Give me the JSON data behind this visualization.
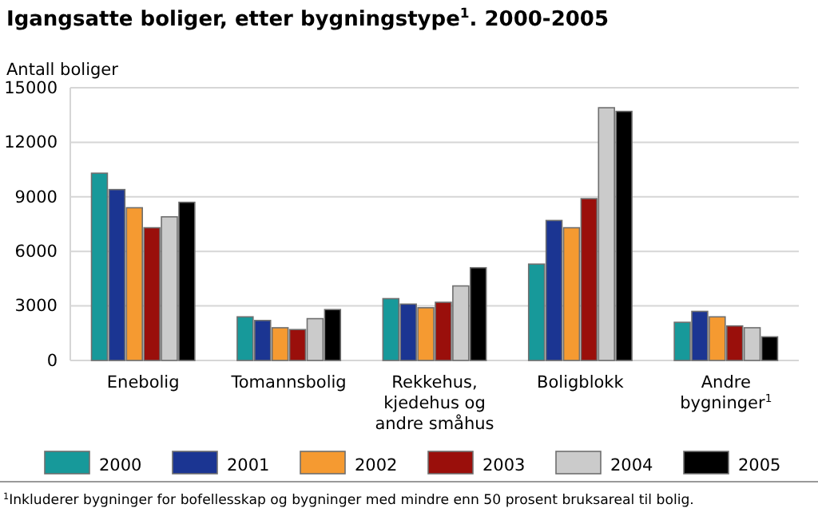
{
  "chart_data": {
    "type": "bar",
    "title": "Igangsatte boliger, etter bygningstype$^{1}$. 2000-2005",
    "ylabel": "Antall boliger",
    "categories": [
      "Enebolig",
      "Tomannsbolig",
      "Rekkehus, kjedehus og andre småhus",
      "Boligblokk",
      "Andre bygninger$^{1}$"
    ],
    "series": [
      {
        "name": "2000",
        "color": "#17999a",
        "values": [
          10300,
          2400,
          3400,
          5300,
          2100
        ]
      },
      {
        "name": "2001",
        "color": "#1b3592",
        "values": [
          9400,
          2200,
          3100,
          7700,
          2700
        ]
      },
      {
        "name": "2002",
        "color": "#f59a31",
        "values": [
          8400,
          1800,
          2900,
          7300,
          2400
        ]
      },
      {
        "name": "2003",
        "color": "#9a0f0b",
        "values": [
          7300,
          1700,
          3200,
          8900,
          1900
        ]
      },
      {
        "name": "2004",
        "color": "#cbcbcb",
        "values": [
          7900,
          2300,
          4100,
          13900,
          1800
        ]
      },
      {
        "name": "2005",
        "color": "#000000",
        "values": [
          8700,
          2800,
          5100,
          13700,
          1300
        ]
      }
    ],
    "ylim": [
      0,
      15000
    ],
    "yticks": [
      0,
      3000,
      6000,
      9000,
      12000,
      15000
    ],
    "grid": "y",
    "legend": "bottom",
    "annotations": [
      "$^{1}$Inkluderer bygninger for bofellesskap og bygninger med mindre enn 50 prosent bruksareal til bolig."
    ]
  }
}
